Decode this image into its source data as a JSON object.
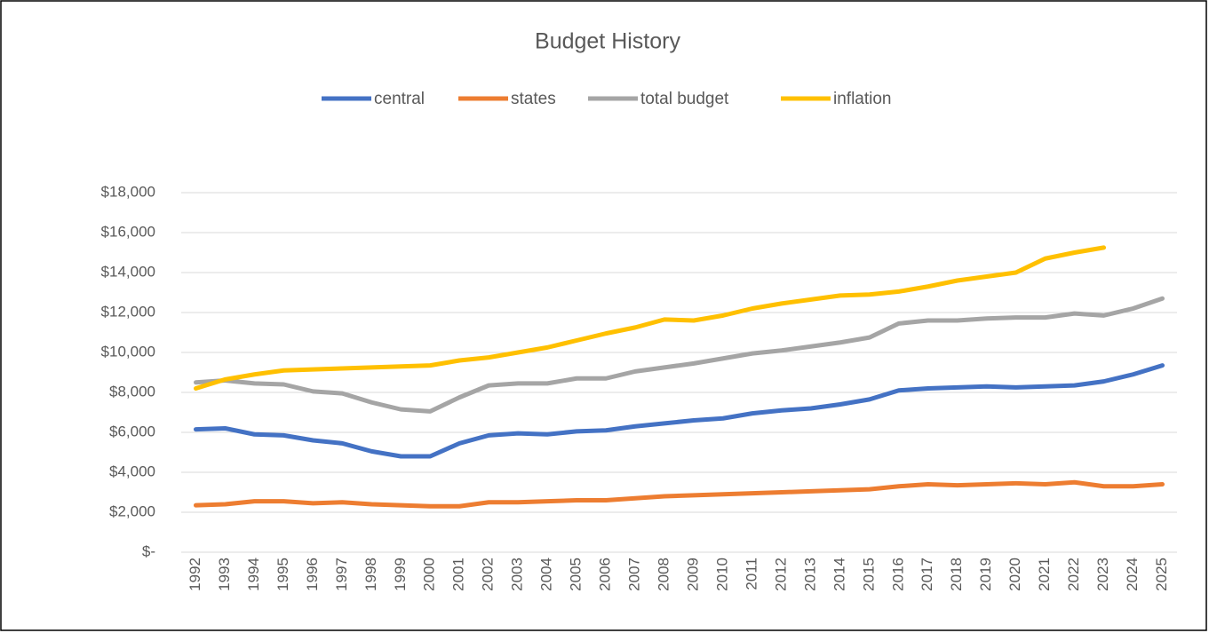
{
  "chart_data": {
    "type": "line",
    "title": "Budget History",
    "categories": [
      "1992",
      "1993",
      "1994",
      "1995",
      "1996",
      "1997",
      "1998",
      "1999",
      "2000",
      "2001",
      "2002",
      "2003",
      "2004",
      "2005",
      "2006",
      "2007",
      "2008",
      "2009",
      "2010",
      "2011",
      "2012",
      "2013",
      "2014",
      "2015",
      "2016",
      "2017",
      "2018",
      "2019",
      "2020",
      "2021",
      "2022",
      "2023",
      "2024",
      "2025"
    ],
    "series": [
      {
        "name": "central",
        "color": "#4472c4",
        "values": [
          6150,
          6200,
          5900,
          5850,
          5600,
          5450,
          5050,
          4800,
          4800,
          5450,
          5850,
          5950,
          5900,
          6050,
          6100,
          6300,
          6450,
          6600,
          6700,
          6950,
          7100,
          7200,
          7400,
          7650,
          8100,
          8200,
          8250,
          8300,
          8250,
          8300,
          8350,
          8550,
          8900,
          9350
        ]
      },
      {
        "name": "states",
        "color": "#ed7d31",
        "values": [
          2350,
          2400,
          2550,
          2550,
          2450,
          2500,
          2400,
          2350,
          2300,
          2300,
          2500,
          2500,
          2550,
          2600,
          2600,
          2700,
          2800,
          2850,
          2900,
          2950,
          3000,
          3050,
          3100,
          3150,
          3300,
          3400,
          3350,
          3400,
          3450,
          3400,
          3500,
          3300,
          3300,
          3400
        ]
      },
      {
        "name": "total budget",
        "color": "#a5a5a5",
        "values": [
          8500,
          8600,
          8450,
          8400,
          8050,
          7950,
          7500,
          7150,
          7050,
          7750,
          8350,
          8450,
          8450,
          8700,
          8700,
          9050,
          9250,
          9450,
          9700,
          9950,
          10100,
          10300,
          10500,
          10750,
          11450,
          11600,
          11600,
          11700,
          11750,
          11750,
          11950,
          11850,
          12200,
          12700
        ]
      },
      {
        "name": "inflation",
        "color": "#ffc000",
        "values": [
          8200,
          8650,
          8900,
          9100,
          9150,
          9200,
          9250,
          9300,
          9350,
          9600,
          9750,
          10000,
          10250,
          10600,
          10950,
          11250,
          11650,
          11600,
          11850,
          12200,
          12450,
          12650,
          12850,
          12900,
          13050,
          13300,
          13600,
          13800,
          14000,
          14700,
          15000,
          15250,
          null,
          null
        ]
      }
    ],
    "ylim": [
      0,
      18000
    ],
    "yticks": [
      {
        "value": 0,
        "label": "$-"
      },
      {
        "value": 2000,
        "label": "$2,000"
      },
      {
        "value": 4000,
        "label": "$4,000"
      },
      {
        "value": 6000,
        "label": "$6,000"
      },
      {
        "value": 8000,
        "label": "$8,000"
      },
      {
        "value": 10000,
        "label": "$10,000"
      },
      {
        "value": 12000,
        "label": "$12,000"
      },
      {
        "value": 14000,
        "label": "$14,000"
      },
      {
        "value": 16000,
        "label": "$16,000"
      },
      {
        "value": 18000,
        "label": "$18,000"
      }
    ],
    "grid": true,
    "legend": "top"
  }
}
